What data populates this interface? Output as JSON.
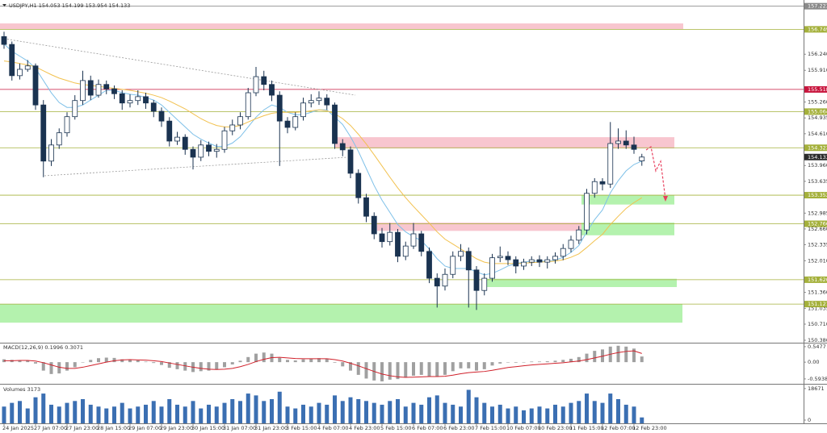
{
  "chart_data": {
    "type": "candlestick",
    "header": "USDJPY,H1  154.053 154.199 153.954 154.133",
    "ylim": [
      150.33,
      157.35
    ],
    "yticks": [
      {
        "value": 156.24,
        "label": "156.240"
      },
      {
        "value": 155.91,
        "label": "155.910"
      },
      {
        "value": 155.26,
        "label": "155.260"
      },
      154.935,
      {
        "value": 154.61,
        "label": "154.610"
      },
      {
        "value": 153.96,
        "label": "153.960"
      },
      153.635,
      152.985,
      {
        "value": 152.66,
        "label": "152.660"
      },
      152.335,
      {
        "value": 152.01,
        "label": "152.010"
      },
      {
        "value": 151.36,
        "label": "151.360"
      },
      151.035,
      {
        "value": 150.71,
        "label": "150.710"
      },
      {
        "value": 150.38,
        "label": "150.380"
      }
    ],
    "time_labels": [
      "24 Jan 2025",
      "27 Jan 07:00",
      "27 Jan 23:00",
      "28 Jan 15:00",
      "29 Jan 07:00",
      "29 Jan 23:00",
      "30 Jan 15:00",
      "31 Jan 07:00",
      "31 Jan 23:00",
      "3 Feb 15:00",
      "4 Feb 07:00",
      "4 Feb 23:00",
      "5 Feb 15:00",
      "6 Feb 07:00",
      "6 Feb 23:00",
      "7 Feb 15:00",
      "10 Feb 07:00",
      "10 Feb 23:00",
      "11 Feb 15:00",
      "12 Feb 07:00",
      "12 Feb 23:00"
    ],
    "candle_up_color": "#ffffff",
    "candle_down_color": "#1a3350",
    "candles": [
      [
        156.6,
        156.7,
        156.35,
        156.44
      ],
      [
        156.44,
        156.5,
        155.7,
        155.8
      ],
      [
        155.8,
        156.05,
        155.72,
        155.93
      ],
      [
        155.93,
        156.12,
        155.88,
        156.0
      ],
      [
        156.0,
        156.05,
        155.1,
        155.2
      ],
      [
        155.2,
        155.3,
        153.72,
        154.05
      ],
      [
        154.05,
        154.5,
        153.95,
        154.38
      ],
      [
        154.38,
        154.72,
        154.3,
        154.63
      ],
      [
        154.63,
        155.05,
        154.55,
        154.96
      ],
      [
        154.96,
        155.4,
        154.9,
        155.29
      ],
      [
        155.29,
        155.9,
        155.2,
        155.7
      ],
      [
        155.7,
        155.8,
        155.3,
        155.4
      ],
      [
        155.4,
        155.72,
        155.35,
        155.62
      ],
      [
        155.62,
        155.7,
        155.42,
        155.53
      ],
      [
        155.53,
        155.6,
        155.32,
        155.43
      ],
      [
        155.43,
        155.5,
        155.1,
        155.24
      ],
      [
        155.24,
        155.42,
        155.15,
        155.29
      ],
      [
        155.29,
        155.5,
        155.2,
        155.37
      ],
      [
        155.37,
        155.45,
        155.12,
        155.24
      ],
      [
        155.24,
        155.3,
        154.95,
        155.07
      ],
      [
        155.07,
        155.15,
        154.75,
        154.87
      ],
      [
        154.87,
        154.95,
        154.35,
        154.46
      ],
      [
        154.46,
        154.65,
        154.38,
        154.54
      ],
      [
        154.54,
        154.6,
        154.18,
        154.29
      ],
      [
        154.29,
        154.35,
        153.88,
        154.13
      ],
      [
        154.13,
        154.48,
        154.05,
        154.38
      ],
      [
        154.38,
        154.45,
        154.15,
        154.25
      ],
      [
        154.25,
        154.4,
        154.12,
        154.29
      ],
      [
        154.29,
        154.75,
        154.22,
        154.67
      ],
      [
        154.67,
        154.9,
        154.58,
        154.79
      ],
      [
        154.79,
        155.05,
        154.7,
        154.96
      ],
      [
        154.96,
        155.55,
        154.9,
        155.45
      ],
      [
        155.45,
        155.98,
        155.38,
        155.78
      ],
      [
        155.78,
        155.9,
        155.5,
        155.62
      ],
      [
        155.62,
        155.7,
        155.28,
        155.4
      ],
      [
        155.4,
        155.48,
        153.95,
        154.87
      ],
      [
        154.87,
        154.95,
        154.62,
        154.74
      ],
      [
        154.74,
        155.05,
        154.68,
        154.96
      ],
      [
        154.96,
        155.35,
        154.88,
        155.24
      ],
      [
        155.24,
        155.42,
        155.15,
        155.29
      ],
      [
        155.29,
        155.48,
        155.2,
        155.34
      ],
      [
        155.34,
        155.42,
        155.1,
        155.2
      ],
      [
        155.2,
        155.25,
        154.3,
        154.41
      ],
      [
        154.41,
        154.5,
        154.15,
        154.28
      ],
      [
        154.28,
        154.35,
        153.7,
        153.8
      ],
      [
        153.8,
        153.88,
        153.18,
        153.3
      ],
      [
        153.3,
        153.38,
        152.8,
        152.92
      ],
      [
        152.92,
        153.0,
        152.45,
        152.56
      ],
      [
        152.56,
        152.68,
        152.28,
        152.4
      ],
      [
        152.4,
        152.78,
        152.32,
        152.59
      ],
      [
        152.59,
        152.66,
        151.98,
        152.1
      ],
      [
        152.1,
        152.4,
        152.02,
        152.31
      ],
      [
        152.31,
        152.78,
        152.25,
        152.56
      ],
      [
        152.56,
        152.62,
        152.1,
        152.2
      ],
      [
        152.2,
        152.28,
        151.55,
        151.65
      ],
      [
        151.65,
        151.75,
        151.05,
        151.49
      ],
      [
        151.49,
        151.85,
        151.4,
        151.73
      ],
      [
        151.73,
        152.2,
        151.65,
        152.1
      ],
      [
        152.1,
        152.35,
        152.0,
        152.2
      ],
      [
        152.2,
        152.28,
        151.05,
        151.82
      ],
      [
        151.82,
        151.9,
        151.0,
        151.4
      ],
      [
        151.4,
        151.75,
        151.3,
        151.65
      ],
      [
        151.65,
        152.15,
        151.58,
        152.07
      ],
      [
        152.07,
        152.3,
        151.98,
        152.1
      ],
      [
        152.1,
        152.2,
        151.92,
        152.03
      ],
      [
        152.03,
        152.1,
        151.75,
        151.9
      ],
      [
        151.9,
        152.05,
        151.82,
        151.98
      ],
      [
        151.98,
        152.1,
        151.9,
        152.03
      ],
      [
        152.03,
        152.12,
        151.88,
        151.98
      ],
      [
        151.98,
        152.1,
        151.85,
        152.03
      ],
      [
        152.03,
        152.18,
        151.95,
        152.1
      ],
      [
        152.1,
        152.35,
        152.02,
        152.26
      ],
      [
        152.26,
        152.52,
        152.18,
        152.43
      ],
      [
        152.43,
        152.72,
        152.35,
        152.64
      ],
      [
        152.64,
        153.48,
        152.55,
        153.39
      ],
      [
        153.39,
        153.7,
        153.3,
        153.63
      ],
      [
        153.63,
        153.7,
        153.45,
        153.58
      ],
      [
        153.58,
        154.85,
        153.5,
        154.41
      ],
      [
        154.41,
        154.72,
        154.3,
        154.46
      ],
      [
        154.46,
        154.68,
        154.3,
        154.38
      ],
      [
        154.38,
        154.55,
        154.2,
        154.29
      ],
      [
        154.053,
        154.199,
        153.954,
        154.133
      ]
    ],
    "moving_averages": [
      {
        "color": "#7ec0e8",
        "values": [
          156.45,
          156.3,
          156.2,
          156.1,
          155.95,
          155.7,
          155.45,
          155.25,
          155.15,
          155.15,
          155.2,
          155.3,
          155.4,
          155.5,
          155.5,
          155.45,
          155.42,
          155.4,
          155.35,
          155.3,
          155.2,
          155.05,
          154.9,
          154.75,
          154.6,
          154.5,
          154.42,
          154.35,
          154.35,
          154.42,
          154.55,
          154.75,
          154.95,
          155.1,
          155.2,
          155.15,
          155.05,
          155.0,
          155.0,
          155.05,
          155.1,
          155.1,
          154.95,
          154.8,
          154.55,
          154.25,
          153.9,
          153.55,
          153.25,
          153.0,
          152.75,
          152.6,
          152.5,
          152.42,
          152.25,
          152.05,
          151.9,
          151.85,
          151.85,
          151.85,
          151.78,
          151.72,
          151.75,
          151.82,
          151.9,
          151.95,
          151.98,
          152.0,
          152.0,
          152.0,
          152.02,
          152.08,
          152.18,
          152.32,
          152.6,
          152.85,
          153.05,
          153.4,
          153.65,
          153.85,
          153.98,
          154.05
        ]
      },
      {
        "color": "#f2c14e",
        "values": [
          156.1,
          156.08,
          156.05,
          156.02,
          155.98,
          155.9,
          155.82,
          155.75,
          155.7,
          155.65,
          155.62,
          155.6,
          155.58,
          155.56,
          155.54,
          155.52,
          155.5,
          155.47,
          155.44,
          155.4,
          155.35,
          155.28,
          155.2,
          155.12,
          155.02,
          154.92,
          154.84,
          154.78,
          154.75,
          154.75,
          154.78,
          154.85,
          154.92,
          154.98,
          155.03,
          155.05,
          155.05,
          155.05,
          155.06,
          155.08,
          155.1,
          155.08,
          155.02,
          154.92,
          154.78,
          154.6,
          154.4,
          154.18,
          153.95,
          153.72,
          153.5,
          153.3,
          153.12,
          152.95,
          152.78,
          152.6,
          152.45,
          152.35,
          152.25,
          152.15,
          152.05,
          151.98,
          151.95,
          151.95,
          151.95,
          151.95,
          151.96,
          151.97,
          151.98,
          151.99,
          152.0,
          152.03,
          152.08,
          152.15,
          152.28,
          152.42,
          152.55,
          152.75,
          152.92,
          153.08,
          153.2,
          153.3
        ]
      }
    ],
    "levels": [
      {
        "value": 157.223,
        "color": "#8a8a8a"
      },
      {
        "value": 156.749,
        "color": "#a4b03a"
      },
      {
        "value": 155.518,
        "color": "#c8143c"
      },
      {
        "value": 155.064,
        "color": "#a4b03a"
      },
      {
        "value": 154.323,
        "color": "#a4b03a"
      },
      {
        "value": 153.352,
        "color": "#a4b03a"
      },
      {
        "value": 152.766,
        "color": "#a4b03a"
      },
      {
        "value": 151.62,
        "label": "151.620",
        "color": "#a4b03a"
      },
      {
        "value": 151.121,
        "color": "#a4b03a"
      }
    ],
    "current_price": 154.133,
    "zones": [
      {
        "from": 156.749,
        "to": 156.87,
        "color": "#f8c6cf"
      },
      {
        "from": 154.31,
        "to": 154.54,
        "color": "#f8c6cf"
      },
      {
        "from": 153.16,
        "to": 153.352,
        "color": "#b4f2ae"
      },
      {
        "from": 152.62,
        "to": 152.79,
        "color": "#f8c6cf"
      },
      {
        "from": 152.53,
        "to": 152.79,
        "color": "#b4f2ae"
      },
      {
        "from": 151.47,
        "to": 151.64,
        "color": "#b4f2ae"
      },
      {
        "from": 150.74,
        "to": 151.121,
        "color": "#b4f2ae"
      }
    ],
    "macd": {
      "label": "MACD(12,26,9) 0.1996 0.3071",
      "ylim": [
        -0.71,
        0.66
      ],
      "yticks": [
        0.5477,
        {
          "value": 0,
          "label": "0.00"
        },
        -0.5938
      ],
      "histogram_color": "#a0a0a0",
      "signal_color": "#d0202a",
      "histogram": [
        0.1,
        0.08,
        0.06,
        0.05,
        -0.05,
        -0.3,
        -0.42,
        -0.4,
        -0.3,
        -0.18,
        0.0,
        0.08,
        0.14,
        0.16,
        0.15,
        0.1,
        0.08,
        0.06,
        0.02,
        -0.03,
        -0.1,
        -0.2,
        -0.25,
        -0.3,
        -0.35,
        -0.32,
        -0.3,
        -0.26,
        -0.18,
        -0.08,
        0.05,
        0.18,
        0.3,
        0.34,
        0.3,
        0.15,
        0.08,
        0.06,
        0.1,
        0.12,
        0.14,
        0.12,
        -0.02,
        -0.15,
        -0.3,
        -0.45,
        -0.58,
        -0.65,
        -0.68,
        -0.62,
        -0.6,
        -0.55,
        -0.48,
        -0.45,
        -0.5,
        -0.52,
        -0.45,
        -0.32,
        -0.22,
        -0.22,
        -0.3,
        -0.25,
        -0.12,
        -0.05,
        0.0,
        -0.02,
        0.0,
        0.02,
        0.02,
        0.03,
        0.05,
        0.08,
        0.12,
        0.18,
        0.3,
        0.4,
        0.45,
        0.55,
        0.58,
        0.55,
        0.48,
        0.1996
      ],
      "signal": [
        0.05,
        0.05,
        0.06,
        0.06,
        0.04,
        -0.02,
        -0.1,
        -0.18,
        -0.22,
        -0.22,
        -0.18,
        -0.12,
        -0.06,
        0.0,
        0.05,
        0.08,
        0.09,
        0.08,
        0.07,
        0.05,
        0.02,
        -0.03,
        -0.08,
        -0.13,
        -0.18,
        -0.22,
        -0.25,
        -0.26,
        -0.25,
        -0.22,
        -0.16,
        -0.08,
        0.02,
        0.1,
        0.16,
        0.17,
        0.15,
        0.13,
        0.12,
        0.12,
        0.12,
        0.12,
        0.09,
        0.04,
        -0.04,
        -0.13,
        -0.23,
        -0.33,
        -0.42,
        -0.48,
        -0.52,
        -0.54,
        -0.53,
        -0.52,
        -0.51,
        -0.51,
        -0.5,
        -0.46,
        -0.41,
        -0.37,
        -0.35,
        -0.33,
        -0.29,
        -0.24,
        -0.19,
        -0.16,
        -0.13,
        -0.1,
        -0.08,
        -0.06,
        -0.04,
        -0.02,
        0.01,
        0.04,
        0.09,
        0.15,
        0.21,
        0.28,
        0.34,
        0.38,
        0.4,
        0.3071
      ]
    },
    "volumes": {
      "label": "Volumes 3173",
      "ylim": [
        0,
        20800
      ],
      "yticks": [
        18671,
        0
      ],
      "color": "#3b6fb2",
      "values": [
        9000,
        11000,
        12000,
        8000,
        14000,
        16000,
        10000,
        9000,
        11000,
        12000,
        13000,
        10000,
        9000,
        8000,
        9000,
        11000,
        8000,
        9000,
        10000,
        12000,
        9000,
        13000,
        10000,
        9000,
        12000,
        8000,
        10000,
        9000,
        11000,
        13000,
        12000,
        16000,
        15000,
        12000,
        13000,
        17000,
        9000,
        8000,
        10000,
        9000,
        11000,
        10000,
        15000,
        12000,
        14000,
        13000,
        12000,
        11000,
        10000,
        12000,
        13000,
        9000,
        11000,
        10000,
        14000,
        15000,
        11000,
        10000,
        9000,
        18000,
        14000,
        11000,
        9000,
        10000,
        8000,
        9000,
        7000,
        8000,
        9000,
        8000,
        10000,
        9000,
        11000,
        12000,
        16000,
        12000,
        11000,
        16000,
        13000,
        10000,
        9000,
        3173
      ]
    }
  }
}
